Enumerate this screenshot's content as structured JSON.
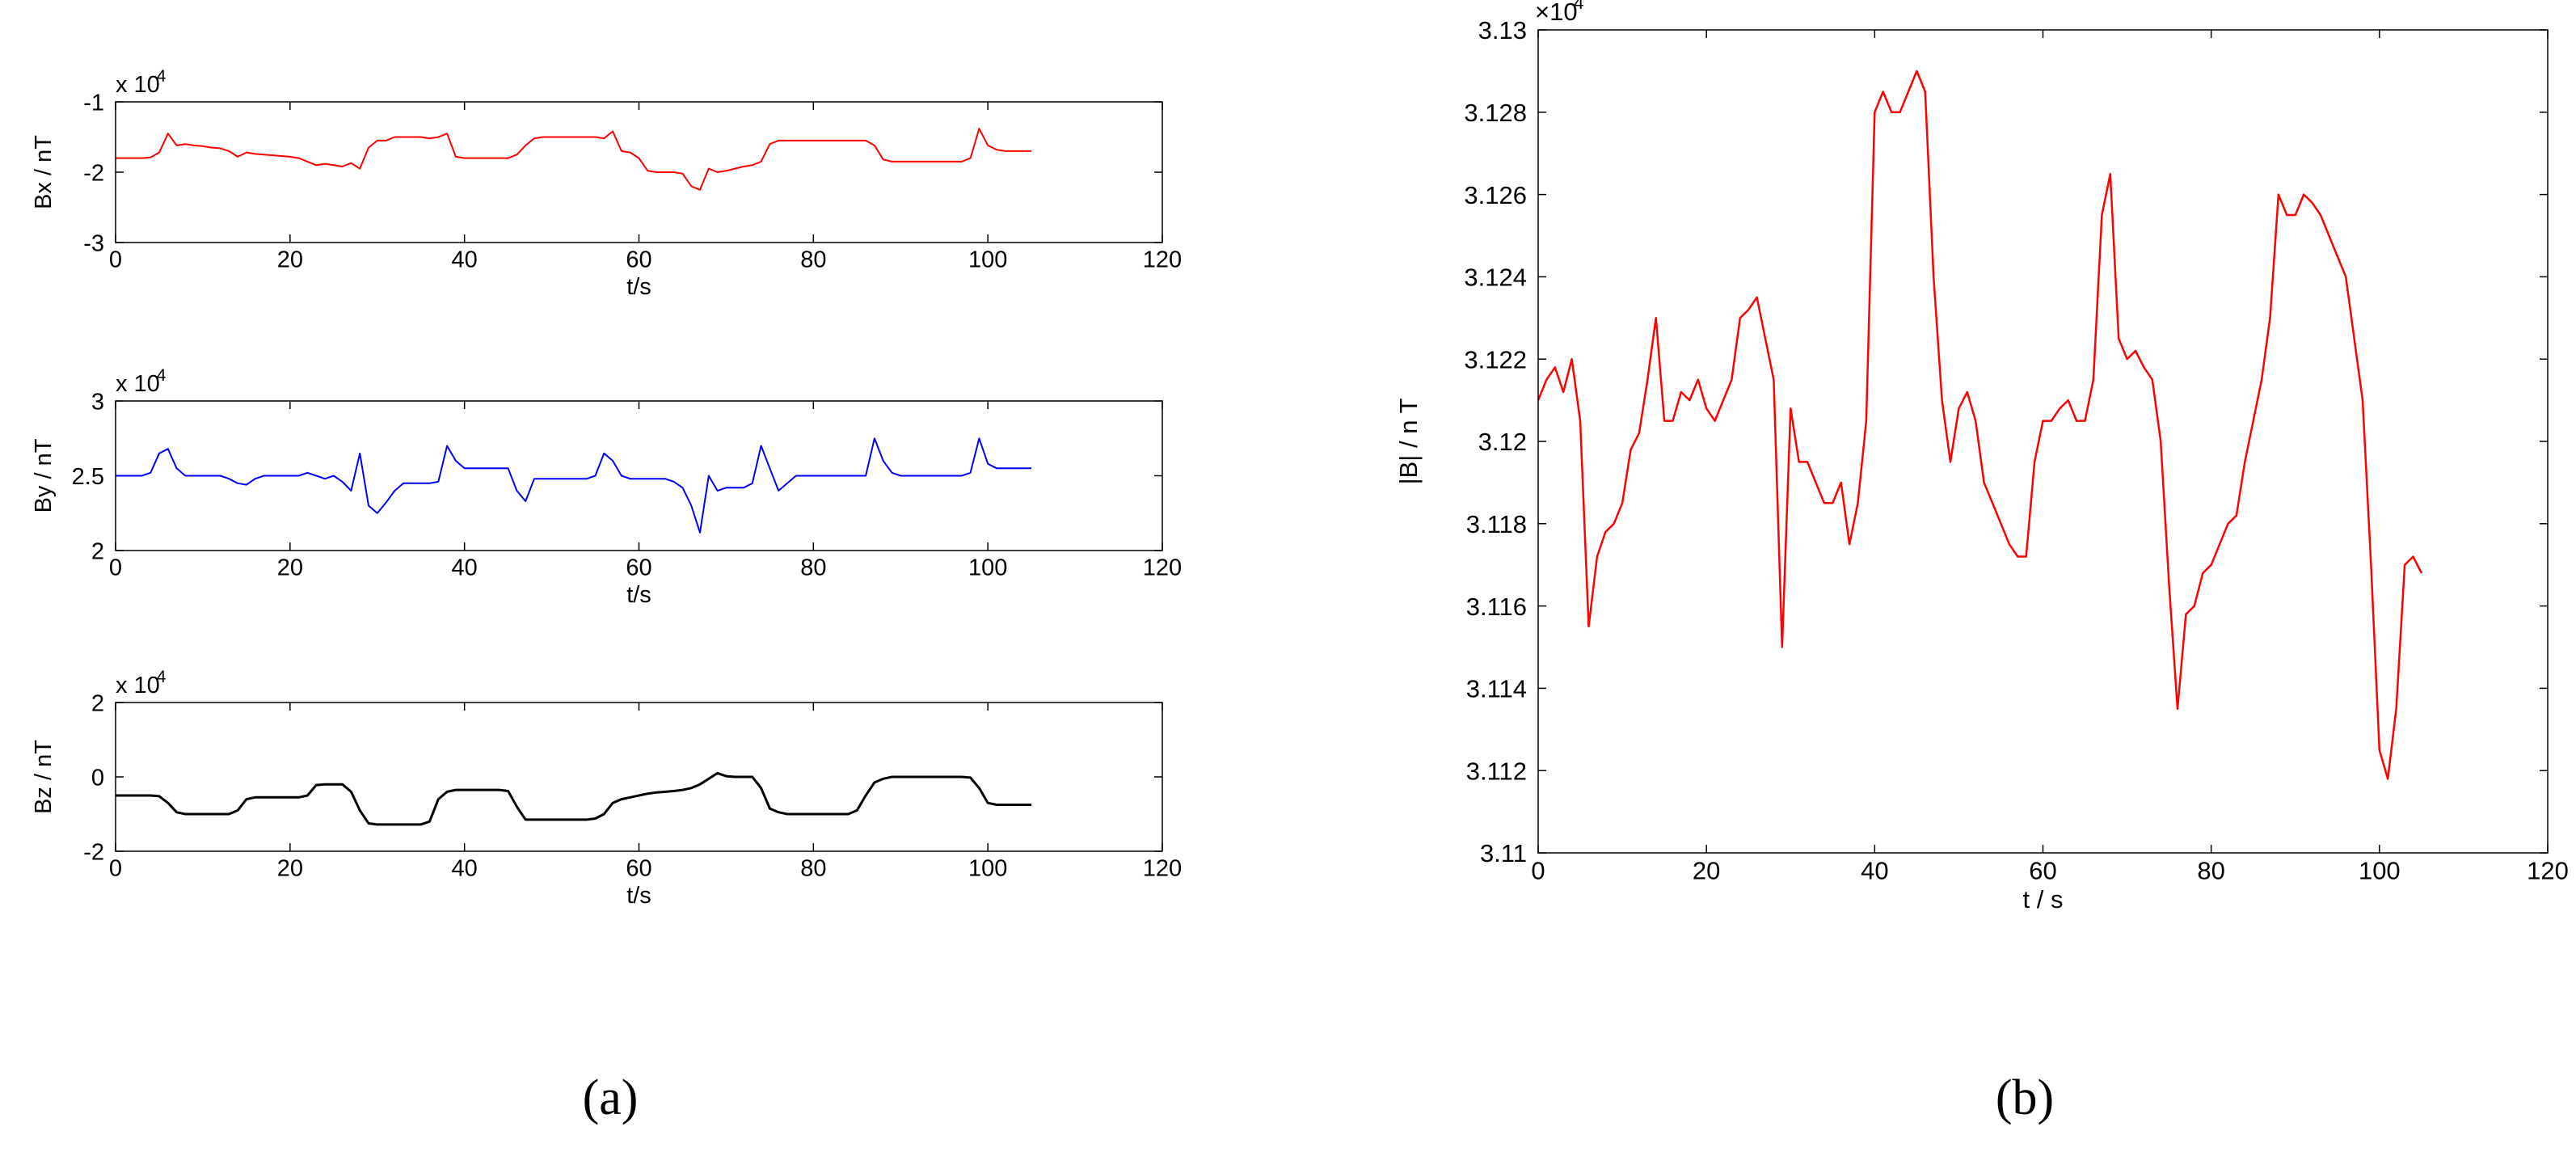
{
  "chart_data": [
    {
      "type": "line",
      "ylabel": "Bx / nT",
      "xlabel": "t/s",
      "multiplier": "x 10",
      "exponent": "4",
      "color": "#ff0000",
      "xlim": [
        0,
        120
      ],
      "xticks": [
        0,
        20,
        40,
        60,
        80,
        100,
        120
      ],
      "ylim": [
        -3,
        -1
      ],
      "yticks": [
        -3,
        -2,
        -1
      ],
      "x": [
        0,
        1,
        2,
        3,
        4,
        5,
        6,
        7,
        8,
        9,
        10,
        11,
        12,
        13,
        14,
        15,
        16,
        17,
        18,
        19,
        20,
        21,
        22,
        23,
        24,
        25,
        26,
        27,
        28,
        29,
        30,
        31,
        32,
        33,
        34,
        35,
        36,
        37,
        38,
        39,
        40,
        41,
        42,
        43,
        44,
        45,
        46,
        47,
        48,
        49,
        50,
        51,
        52,
        53,
        54,
        55,
        56,
        57,
        58,
        59,
        60,
        61,
        62,
        63,
        64,
        65,
        66,
        67,
        68,
        69,
        70,
        71,
        72,
        73,
        74,
        75,
        76,
        77,
        78,
        79,
        80,
        81,
        82,
        83,
        84,
        85,
        86,
        87,
        88,
        89,
        90,
        91,
        92,
        93,
        94,
        95,
        96,
        97,
        98,
        99,
        100,
        101,
        102,
        103,
        104,
        105
      ],
      "values": [
        -1.8,
        -1.8,
        -1.8,
        -1.8,
        -1.79,
        -1.72,
        -1.45,
        -1.62,
        -1.6,
        -1.62,
        -1.63,
        -1.65,
        -1.66,
        -1.7,
        -1.78,
        -1.72,
        -1.74,
        -1.75,
        -1.76,
        -1.77,
        -1.78,
        -1.8,
        -1.85,
        -1.9,
        -1.88,
        -1.9,
        -1.92,
        -1.87,
        -1.95,
        -1.65,
        -1.55,
        -1.55,
        -1.5,
        -1.5,
        -1.5,
        -1.5,
        -1.52,
        -1.5,
        -1.45,
        -1.78,
        -1.8,
        -1.8,
        -1.8,
        -1.8,
        -1.8,
        -1.8,
        -1.75,
        -1.62,
        -1.52,
        -1.5,
        -1.5,
        -1.5,
        -1.5,
        -1.5,
        -1.5,
        -1.5,
        -1.52,
        -1.42,
        -1.7,
        -1.72,
        -1.8,
        -1.98,
        -2,
        -2,
        -2,
        -2.02,
        -2.2,
        -2.25,
        -1.95,
        -2,
        -1.98,
        -1.95,
        -1.92,
        -1.9,
        -1.85,
        -1.6,
        -1.55,
        -1.55,
        -1.55,
        -1.55,
        -1.55,
        -1.55,
        -1.55,
        -1.55,
        -1.55,
        -1.55,
        -1.55,
        -1.62,
        -1.82,
        -1.85,
        -1.85,
        -1.85,
        -1.85,
        -1.85,
        -1.85,
        -1.85,
        -1.85,
        -1.85,
        -1.8,
        -1.38,
        -1.62,
        -1.68,
        -1.7,
        -1.7,
        -1.7,
        -1.7
      ]
    },
    {
      "type": "line",
      "ylabel": "By / nT",
      "xlabel": "t/s",
      "multiplier": "x 10",
      "exponent": "4",
      "color": "#0000ff",
      "xlim": [
        0,
        120
      ],
      "xticks": [
        0,
        20,
        40,
        60,
        80,
        100,
        120
      ],
      "ylim": [
        2,
        3
      ],
      "yticks": [
        2,
        2.5,
        3
      ],
      "x": [
        0,
        1,
        2,
        3,
        4,
        5,
        6,
        7,
        8,
        9,
        10,
        11,
        12,
        13,
        14,
        15,
        16,
        17,
        18,
        19,
        20,
        21,
        22,
        23,
        24,
        25,
        26,
        27,
        28,
        29,
        30,
        31,
        32,
        33,
        34,
        35,
        36,
        37,
        38,
        39,
        40,
        41,
        42,
        43,
        44,
        45,
        46,
        47,
        48,
        49,
        50,
        51,
        52,
        53,
        54,
        55,
        56,
        57,
        58,
        59,
        60,
        61,
        62,
        63,
        64,
        65,
        66,
        67,
        68,
        69,
        70,
        71,
        72,
        73,
        74,
        75,
        76,
        77,
        78,
        79,
        80,
        81,
        82,
        83,
        84,
        85,
        86,
        87,
        88,
        89,
        90,
        91,
        92,
        93,
        94,
        95,
        96,
        97,
        98,
        99,
        100,
        101,
        102,
        103,
        104,
        105
      ],
      "values": [
        2.5,
        2.5,
        2.5,
        2.5,
        2.52,
        2.65,
        2.68,
        2.55,
        2.5,
        2.5,
        2.5,
        2.5,
        2.5,
        2.48,
        2.45,
        2.44,
        2.48,
        2.5,
        2.5,
        2.5,
        2.5,
        2.5,
        2.52,
        2.5,
        2.48,
        2.5,
        2.46,
        2.4,
        2.65,
        2.3,
        2.25,
        2.32,
        2.4,
        2.45,
        2.45,
        2.45,
        2.45,
        2.46,
        2.7,
        2.6,
        2.55,
        2.55,
        2.55,
        2.55,
        2.55,
        2.55,
        2.4,
        2.33,
        2.48,
        2.48,
        2.48,
        2.48,
        2.48,
        2.48,
        2.48,
        2.5,
        2.65,
        2.6,
        2.5,
        2.48,
        2.48,
        2.48,
        2.48,
        2.48,
        2.46,
        2.42,
        2.3,
        2.12,
        2.5,
        2.4,
        2.42,
        2.42,
        2.42,
        2.45,
        2.7,
        2.55,
        2.4,
        2.45,
        2.5,
        2.5,
        2.5,
        2.5,
        2.5,
        2.5,
        2.5,
        2.5,
        2.5,
        2.75,
        2.6,
        2.52,
        2.5,
        2.5,
        2.5,
        2.5,
        2.5,
        2.5,
        2.5,
        2.5,
        2.52,
        2.75,
        2.58,
        2.55,
        2.55,
        2.55,
        2.55,
        2.55
      ]
    },
    {
      "type": "line",
      "ylabel": "Bz / nT",
      "xlabel": "t/s",
      "multiplier": "x 10",
      "exponent": "4",
      "color": "#000000",
      "xlim": [
        0,
        120
      ],
      "xticks": [
        0,
        20,
        40,
        60,
        80,
        100,
        120
      ],
      "ylim": [
        -2,
        2
      ],
      "yticks": [
        -2,
        0,
        2
      ],
      "x": [
        0,
        1,
        2,
        3,
        4,
        5,
        6,
        7,
        8,
        9,
        10,
        11,
        12,
        13,
        14,
        15,
        16,
        17,
        18,
        19,
        20,
        21,
        22,
        23,
        24,
        25,
        26,
        27,
        28,
        29,
        30,
        31,
        32,
        33,
        34,
        35,
        36,
        37,
        38,
        39,
        40,
        41,
        42,
        43,
        44,
        45,
        46,
        47,
        48,
        49,
        50,
        51,
        52,
        53,
        54,
        55,
        56,
        57,
        58,
        59,
        60,
        61,
        62,
        63,
        64,
        65,
        66,
        67,
        68,
        69,
        70,
        71,
        72,
        73,
        74,
        75,
        76,
        77,
        78,
        79,
        80,
        81,
        82,
        83,
        84,
        85,
        86,
        87,
        88,
        89,
        90,
        91,
        92,
        93,
        94,
        95,
        96,
        97,
        98,
        99,
        100,
        101,
        102,
        103,
        104,
        105
      ],
      "values": [
        -0.5,
        -0.5,
        -0.5,
        -0.5,
        -0.5,
        -0.52,
        -0.7,
        -0.95,
        -1,
        -1,
        -1,
        -1,
        -1,
        -1,
        -0.9,
        -0.6,
        -0.55,
        -0.55,
        -0.55,
        -0.55,
        -0.55,
        -0.55,
        -0.5,
        -0.22,
        -0.2,
        -0.2,
        -0.2,
        -0.4,
        -0.9,
        -1.25,
        -1.28,
        -1.28,
        -1.28,
        -1.28,
        -1.28,
        -1.28,
        -1.2,
        -0.6,
        -0.4,
        -0.35,
        -0.35,
        -0.35,
        -0.35,
        -0.35,
        -0.35,
        -0.38,
        -0.8,
        -1.15,
        -1.15,
        -1.15,
        -1.15,
        -1.15,
        -1.15,
        -1.15,
        -1.15,
        -1.12,
        -1,
        -0.7,
        -0.6,
        -0.55,
        -0.5,
        -0.45,
        -0.42,
        -0.4,
        -0.38,
        -0.35,
        -0.3,
        -0.2,
        -0.05,
        0.1,
        0.02,
        0,
        0,
        0,
        -0.3,
        -0.85,
        -0.95,
        -1,
        -1,
        -1,
        -1,
        -1,
        -1,
        -1,
        -1,
        -0.9,
        -0.5,
        -0.15,
        -0.05,
        0,
        0,
        0,
        0,
        0,
        0,
        0,
        0,
        0,
        -0.02,
        -0.3,
        -0.7,
        -0.75,
        -0.75,
        -0.75,
        -0.75,
        -0.75
      ]
    },
    {
      "type": "line",
      "ylabel": "|B| / n T",
      "xlabel": "t / s",
      "multiplier": "×10",
      "exponent": "4",
      "color": "#ff0000",
      "xlim": [
        0,
        120
      ],
      "xticks": [
        0,
        20,
        40,
        60,
        80,
        100,
        120
      ],
      "ylim": [
        3.11,
        3.13
      ],
      "yticks": [
        3.11,
        3.112,
        3.114,
        3.116,
        3.118,
        3.12,
        3.122,
        3.124,
        3.126,
        3.128,
        3.13
      ],
      "x": [
        0,
        1,
        2,
        3,
        4,
        5,
        6,
        7,
        8,
        9,
        10,
        11,
        12,
        13,
        14,
        15,
        16,
        17,
        18,
        19,
        20,
        21,
        22,
        23,
        24,
        25,
        26,
        27,
        28,
        29,
        30,
        31,
        32,
        33,
        34,
        35,
        36,
        37,
        38,
        39,
        40,
        41,
        42,
        43,
        44,
        45,
        46,
        47,
        48,
        49,
        50,
        51,
        52,
        53,
        54,
        55,
        56,
        57,
        58,
        59,
        60,
        61,
        62,
        63,
        64,
        65,
        66,
        67,
        68,
        69,
        70,
        71,
        72,
        73,
        74,
        75,
        76,
        77,
        78,
        79,
        80,
        81,
        82,
        83,
        84,
        85,
        86,
        87,
        88,
        89,
        90,
        91,
        92,
        93,
        94,
        95,
        96,
        97,
        98,
        99,
        100,
        101,
        102,
        103,
        104,
        105
      ],
      "values": [
        3.121,
        3.1215,
        3.1218,
        3.1212,
        3.122,
        3.1205,
        3.1155,
        3.1172,
        3.1178,
        3.118,
        3.1185,
        3.1198,
        3.1202,
        3.1215,
        3.123,
        3.1205,
        3.1205,
        3.1212,
        3.121,
        3.1215,
        3.1208,
        3.1205,
        3.121,
        3.1215,
        3.123,
        3.1232,
        3.1235,
        3.1225,
        3.1215,
        3.115,
        3.1208,
        3.1195,
        3.1195,
        3.119,
        3.1185,
        3.1185,
        3.119,
        3.1175,
        3.1185,
        3.1205,
        3.128,
        3.1285,
        3.128,
        3.128,
        3.1285,
        3.129,
        3.1285,
        3.124,
        3.121,
        3.1195,
        3.1208,
        3.1212,
        3.1205,
        3.119,
        3.1185,
        3.118,
        3.1175,
        3.1172,
        3.1172,
        3.1195,
        3.1205,
        3.1205,
        3.1208,
        3.121,
        3.1205,
        3.1205,
        3.1215,
        3.1255,
        3.1265,
        3.1225,
        3.122,
        3.1222,
        3.1218,
        3.1215,
        3.12,
        3.1165,
        3.1135,
        3.1158,
        3.116,
        3.1168,
        3.117,
        3.1175,
        3.118,
        3.1182,
        3.1195,
        3.1205,
        3.1215,
        3.123,
        3.126,
        3.1255,
        3.1255,
        3.126,
        3.1258,
        3.1255,
        3.125,
        3.1245,
        3.124,
        3.1225,
        3.121,
        3.117,
        3.1125,
        3.1118,
        3.1135,
        3.117,
        3.1172,
        3.1168
      ]
    }
  ],
  "panel_labels": [
    "(a)",
    "(b)"
  ]
}
